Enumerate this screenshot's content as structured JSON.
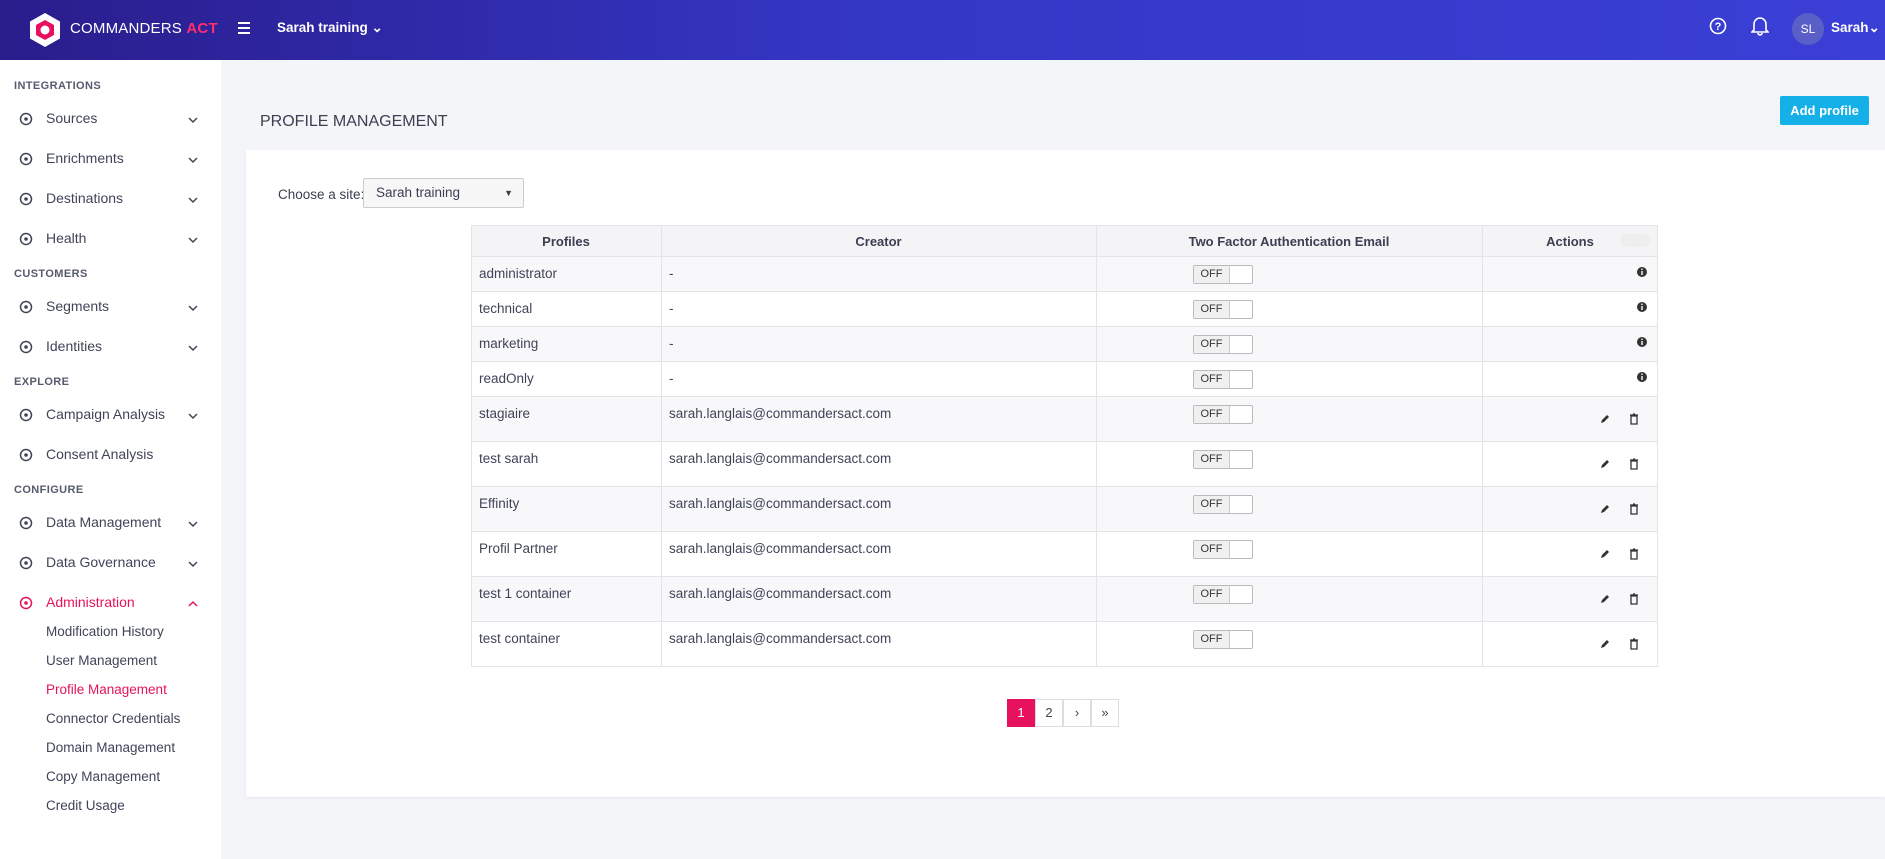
{
  "header": {
    "brand": "COMMANDERS",
    "brand_accent": "ACT",
    "site": "Sarah training",
    "avatar": "SL",
    "user": "Sarah"
  },
  "sidebar": [
    {
      "section": "INTEGRATIONS",
      "items": [
        {
          "label": "Sources",
          "expandable": true
        },
        {
          "label": "Enrichments",
          "expandable": true
        },
        {
          "label": "Destinations",
          "expandable": true
        },
        {
          "label": "Health",
          "expandable": true
        }
      ]
    },
    {
      "section": "CUSTOMERS",
      "items": [
        {
          "label": "Segments",
          "expandable": true
        },
        {
          "label": "Identities",
          "expandable": true
        }
      ]
    },
    {
      "section": "EXPLORE",
      "items": [
        {
          "label": "Campaign Analysis",
          "expandable": true
        },
        {
          "label": "Consent Analysis",
          "expandable": false
        }
      ]
    },
    {
      "section": "CONFIGURE",
      "items": [
        {
          "label": "Data Management",
          "expandable": true
        },
        {
          "label": "Data Governance",
          "expandable": true
        },
        {
          "label": "Administration",
          "expandable": true,
          "active": true,
          "subitems": [
            "Modification History",
            "User Management",
            "Profile Management",
            "Connector Credentials",
            "Domain Management",
            "Copy Management",
            "Credit Usage"
          ],
          "active_subitem": 2
        }
      ]
    }
  ],
  "page": {
    "title": "PROFILE MANAGEMENT",
    "add_button": "Add profile",
    "site_label": "Choose a site:",
    "site_value": "Sarah training"
  },
  "table": {
    "columns": [
      "Profiles",
      "Creator",
      "Two Factor Authentication Email",
      "Actions"
    ],
    "rows": [
      {
        "profile": "administrator",
        "creator": "-",
        "toggle": "OFF",
        "editable": false
      },
      {
        "profile": "technical",
        "creator": "-",
        "toggle": "OFF",
        "editable": false
      },
      {
        "profile": "marketing",
        "creator": "-",
        "toggle": "OFF",
        "editable": false
      },
      {
        "profile": "readOnly",
        "creator": "-",
        "toggle": "OFF",
        "editable": false
      },
      {
        "profile": "stagiaire",
        "creator": "sarah.langlais@commandersact.com",
        "toggle": "OFF",
        "editable": true
      },
      {
        "profile": "test sarah",
        "creator": "sarah.langlais@commandersact.com",
        "toggle": "OFF",
        "editable": true
      },
      {
        "profile": "Effinity",
        "creator": "sarah.langlais@commandersact.com",
        "toggle": "OFF",
        "editable": true
      },
      {
        "profile": "Profil Partner",
        "creator": "sarah.langlais@commandersact.com",
        "toggle": "OFF",
        "editable": true
      },
      {
        "profile": "test 1 container",
        "creator": "sarah.langlais@commandersact.com",
        "toggle": "OFF",
        "editable": true
      },
      {
        "profile": "test container",
        "creator": "sarah.langlais@commandersact.com",
        "toggle": "OFF",
        "editable": true
      }
    ]
  },
  "pagination": {
    "pages": [
      "1",
      "2"
    ],
    "current": 0
  }
}
